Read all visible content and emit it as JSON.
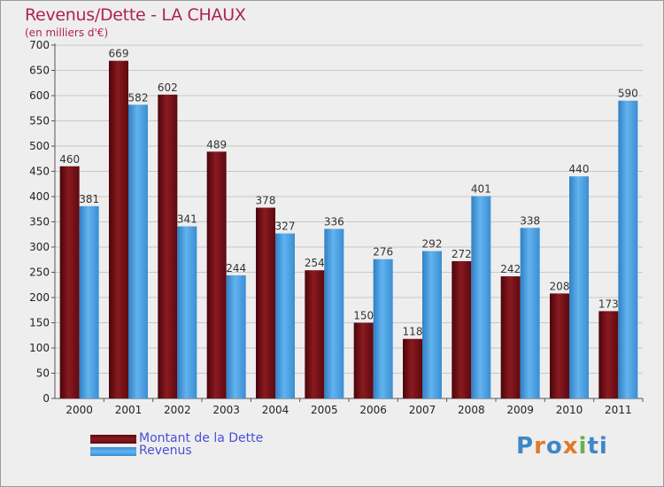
{
  "chart_data": {
    "type": "bar",
    "title": "Revenus/Dette - LA CHAUX",
    "subtitle": "(en milliers d'€)",
    "categories": [
      "2000",
      "2001",
      "2002",
      "2003",
      "2004",
      "2005",
      "2006",
      "2007",
      "2008",
      "2009",
      "2010",
      "2011"
    ],
    "series": [
      {
        "name": "Montant de la Dette",
        "color": "#6e0f14",
        "values": [
          460,
          669,
          602,
          489,
          378,
          254,
          150,
          118,
          272,
          242,
          208,
          173
        ]
      },
      {
        "name": "Revenus",
        "color": "#4fa3e0",
        "values": [
          381,
          582,
          341,
          244,
          327,
          336,
          276,
          292,
          401,
          338,
          440,
          590
        ]
      }
    ],
    "ylim": [
      0,
      700
    ],
    "yticks": [
      0,
      50,
      100,
      150,
      200,
      250,
      300,
      350,
      400,
      450,
      500,
      550,
      600,
      650,
      700
    ],
    "grid": true,
    "legend_position": "bottom-left"
  },
  "legend": {
    "debt_label": "Montant de la Dette",
    "revenue_label": "Revenus"
  },
  "logo": {
    "letters": [
      "P",
      "r",
      "o",
      "x",
      "i",
      "ti"
    ]
  }
}
